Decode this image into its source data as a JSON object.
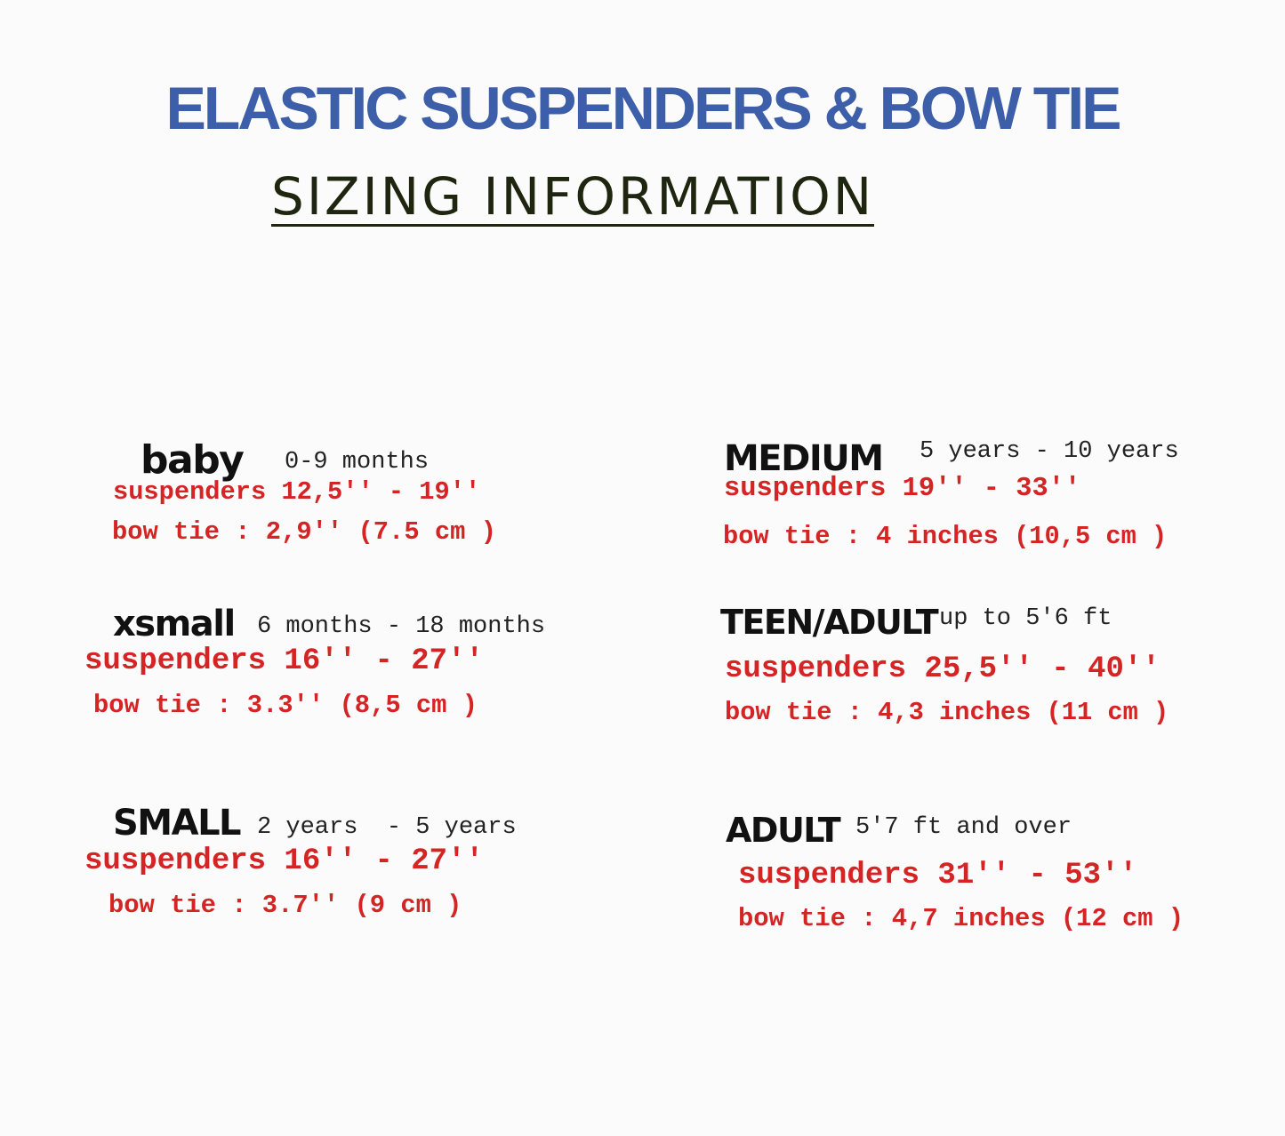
{
  "title": "ELASTIC SUSPENDERS & BOW TIE",
  "subtitle": "SIZING INFORMATION",
  "colors": {
    "title": "#3d5ea8",
    "subtitle": "#1e2610",
    "measurements": "#d42424"
  },
  "sizes": [
    {
      "name": "baby",
      "range": "0-9 months",
      "suspenders": "suspenders 12,5'' - 19''",
      "bow_tie": "bow tie : 2,9'' (7.5 cm )"
    },
    {
      "name": "xsmall",
      "range": "6 months - 18 months",
      "suspenders": "suspenders 16'' - 27''",
      "bow_tie": "bow tie : 3.3'' (8,5 cm )"
    },
    {
      "name": "SMALL",
      "range": "2 years  - 5 years",
      "suspenders": "suspenders 16'' - 27''",
      "bow_tie": "bow tie : 3.7'' (9 cm )"
    },
    {
      "name": "MEDIUM",
      "range": "5 years - 10 years",
      "suspenders": "suspenders 19'' - 33''",
      "bow_tie": "bow tie : 4 inches (10,5 cm )"
    },
    {
      "name": "TEEN/ADULT",
      "range": "up to 5'6 ft",
      "suspenders": "suspenders 25,5'' - 40''",
      "bow_tie": "bow tie : 4,3 inches (11 cm )"
    },
    {
      "name": "ADULT",
      "range": "5'7 ft and over",
      "suspenders": "suspenders 31'' - 53''",
      "bow_tie": "bow tie : 4,7 inches (12 cm )"
    }
  ]
}
